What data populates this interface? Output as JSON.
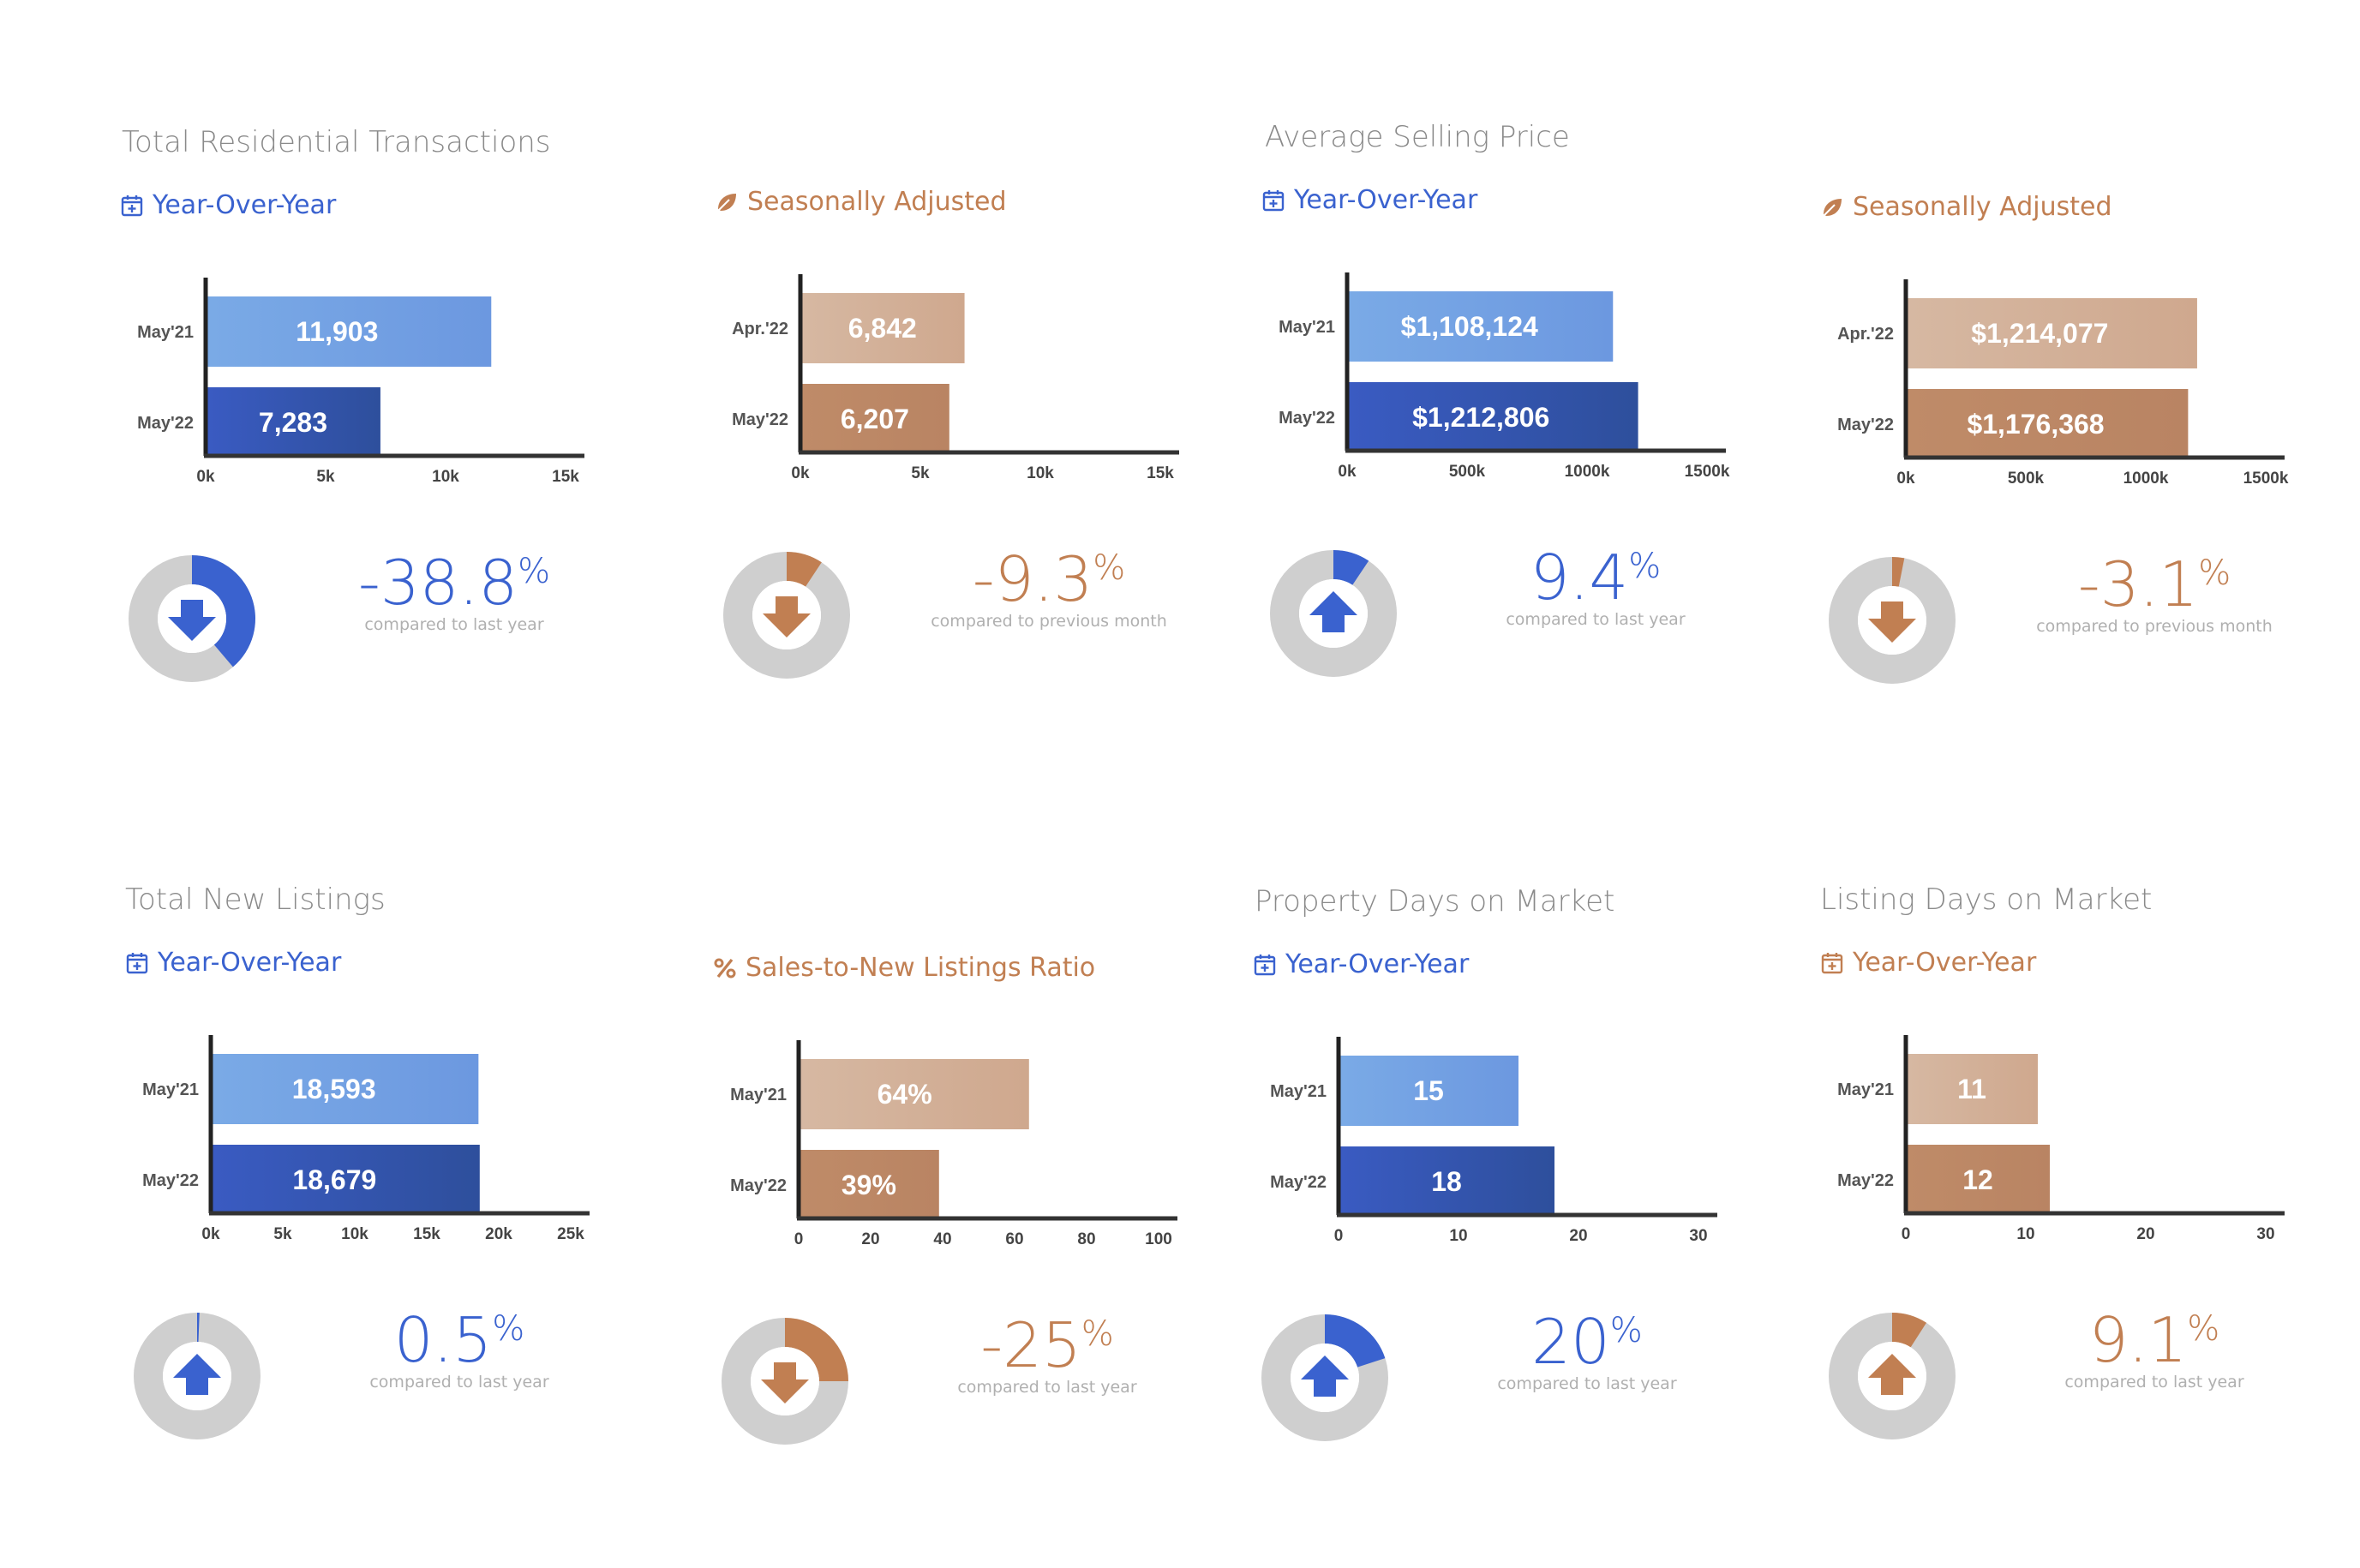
{
  "colors": {
    "blue_light": "#7aaae6",
    "blue_dark": "#3a5bc2",
    "tan_light": "#d6b8a2",
    "tan_dark": "#bf8b68",
    "accent_blue": "#3a62cf",
    "accent_brown": "#c17f52",
    "donut_gray": "#cfcfcf",
    "title_gray": "#8a8a8a"
  },
  "titles": {
    "t1": "Total Residential Transactions",
    "t2": "Average Selling Price",
    "t3": "Total New Listings",
    "t4": "Property Days on Market",
    "t5": "Listing Days on Market"
  },
  "chart_data": [
    {
      "type": "bar",
      "subtitle": "Year-Over-Year",
      "subtitle_icon": "calendar-icon",
      "theme": "blue",
      "categories": [
        "May'21",
        "May'22"
      ],
      "values": [
        11903,
        7283
      ],
      "labels": [
        "11,903",
        "7,283"
      ],
      "xlim": [
        0,
        15000
      ],
      "ticks": [
        0,
        5000,
        10000,
        15000
      ],
      "tick_labels": [
        "0k",
        "5k",
        "10k",
        "15k"
      ],
      "change": {
        "value": "-38.8",
        "suffix": "%",
        "caption": "compared to last year",
        "direction": "down",
        "fraction": 0.388
      }
    },
    {
      "type": "bar",
      "subtitle": "Seasonally Adjusted",
      "subtitle_icon": "leaf-icon",
      "theme": "tan",
      "categories": [
        "Apr.'22",
        "May'22"
      ],
      "values": [
        6842,
        6207
      ],
      "labels": [
        "6,842",
        "6,207"
      ],
      "xlim": [
        0,
        15000
      ],
      "ticks": [
        0,
        5000,
        10000,
        15000
      ],
      "tick_labels": [
        "0k",
        "5k",
        "10k",
        "15k"
      ],
      "change": {
        "value": "-9.3",
        "suffix": "%",
        "caption": "compared to previous month",
        "direction": "down",
        "fraction": 0.093
      }
    },
    {
      "type": "bar",
      "subtitle": "Year-Over-Year",
      "subtitle_icon": "calendar-icon",
      "theme": "blue",
      "categories": [
        "May'21",
        "May'22"
      ],
      "values": [
        1108124,
        1212806
      ],
      "labels": [
        "$1,108,124",
        "$1,212,806"
      ],
      "xlim": [
        0,
        1500000
      ],
      "ticks": [
        0,
        500000,
        1000000,
        1500000
      ],
      "tick_labels": [
        "0k",
        "500k",
        "1000k",
        "1500k"
      ],
      "change": {
        "value": "9.4",
        "suffix": "%",
        "caption": "compared to last year",
        "direction": "up",
        "fraction": 0.094
      }
    },
    {
      "type": "bar",
      "subtitle": "Seasonally Adjusted",
      "subtitle_icon": "leaf-icon",
      "theme": "tan",
      "categories": [
        "Apr.'22",
        "May'22"
      ],
      "values": [
        1214077,
        1176368
      ],
      "labels": [
        "$1,214,077",
        "$1,176,368"
      ],
      "xlim": [
        0,
        1500000
      ],
      "ticks": [
        0,
        500000,
        1000000,
        1500000
      ],
      "tick_labels": [
        "0k",
        "500k",
        "1000k",
        "1500k"
      ],
      "change": {
        "value": "-3.1",
        "suffix": "%",
        "caption": "compared to previous month",
        "direction": "down",
        "fraction": 0.031
      }
    },
    {
      "type": "bar",
      "subtitle": "Year-Over-Year",
      "subtitle_icon": "calendar-icon",
      "theme": "blue",
      "categories": [
        "May'21",
        "May'22"
      ],
      "values": [
        18593,
        18679
      ],
      "labels": [
        "18,593",
        "18,679"
      ],
      "xlim": [
        0,
        25000
      ],
      "ticks": [
        0,
        5000,
        10000,
        15000,
        20000,
        25000
      ],
      "tick_labels": [
        "0k",
        "5k",
        "10k",
        "15k",
        "20k",
        "25k"
      ],
      "change": {
        "value": "0.5",
        "suffix": "%",
        "caption": "compared to last year",
        "direction": "up",
        "fraction": 0.005
      }
    },
    {
      "type": "bar",
      "subtitle": "Sales-to-New Listings Ratio",
      "subtitle_icon": "percent-icon",
      "theme": "tan",
      "categories": [
        "May'21",
        "May'22"
      ],
      "values": [
        64,
        39
      ],
      "labels": [
        "64%",
        "39%"
      ],
      "xlim": [
        0,
        100
      ],
      "ticks": [
        0,
        20,
        40,
        60,
        80,
        100
      ],
      "tick_labels": [
        "0",
        "20",
        "40",
        "60",
        "80",
        "100"
      ],
      "change": {
        "value": "-25",
        "suffix": "%",
        "caption": "compared to last year",
        "direction": "down",
        "fraction": 0.25
      }
    },
    {
      "type": "bar",
      "subtitle": "Year-Over-Year",
      "subtitle_icon": "calendar-icon",
      "theme": "blue",
      "categories": [
        "May'21",
        "May'22"
      ],
      "values": [
        15,
        18
      ],
      "labels": [
        "15",
        "18"
      ],
      "xlim": [
        0,
        30
      ],
      "ticks": [
        0,
        10,
        20,
        30
      ],
      "tick_labels": [
        "0",
        "10",
        "20",
        "30"
      ],
      "change": {
        "value": "20",
        "suffix": "%",
        "caption": "compared to last year",
        "direction": "up",
        "fraction": 0.2
      }
    },
    {
      "type": "bar",
      "subtitle": "Year-Over-Year",
      "subtitle_icon": "calendar-icon",
      "theme": "tan",
      "categories": [
        "May'21",
        "May'22"
      ],
      "values": [
        11,
        12
      ],
      "labels": [
        "11",
        "12"
      ],
      "xlim": [
        0,
        30
      ],
      "ticks": [
        0,
        10,
        20,
        30
      ],
      "tick_labels": [
        "0",
        "10",
        "20",
        "30"
      ],
      "change": {
        "value": "9.1",
        "suffix": "%",
        "caption": "compared to last year",
        "direction": "up",
        "fraction": 0.091
      }
    }
  ]
}
